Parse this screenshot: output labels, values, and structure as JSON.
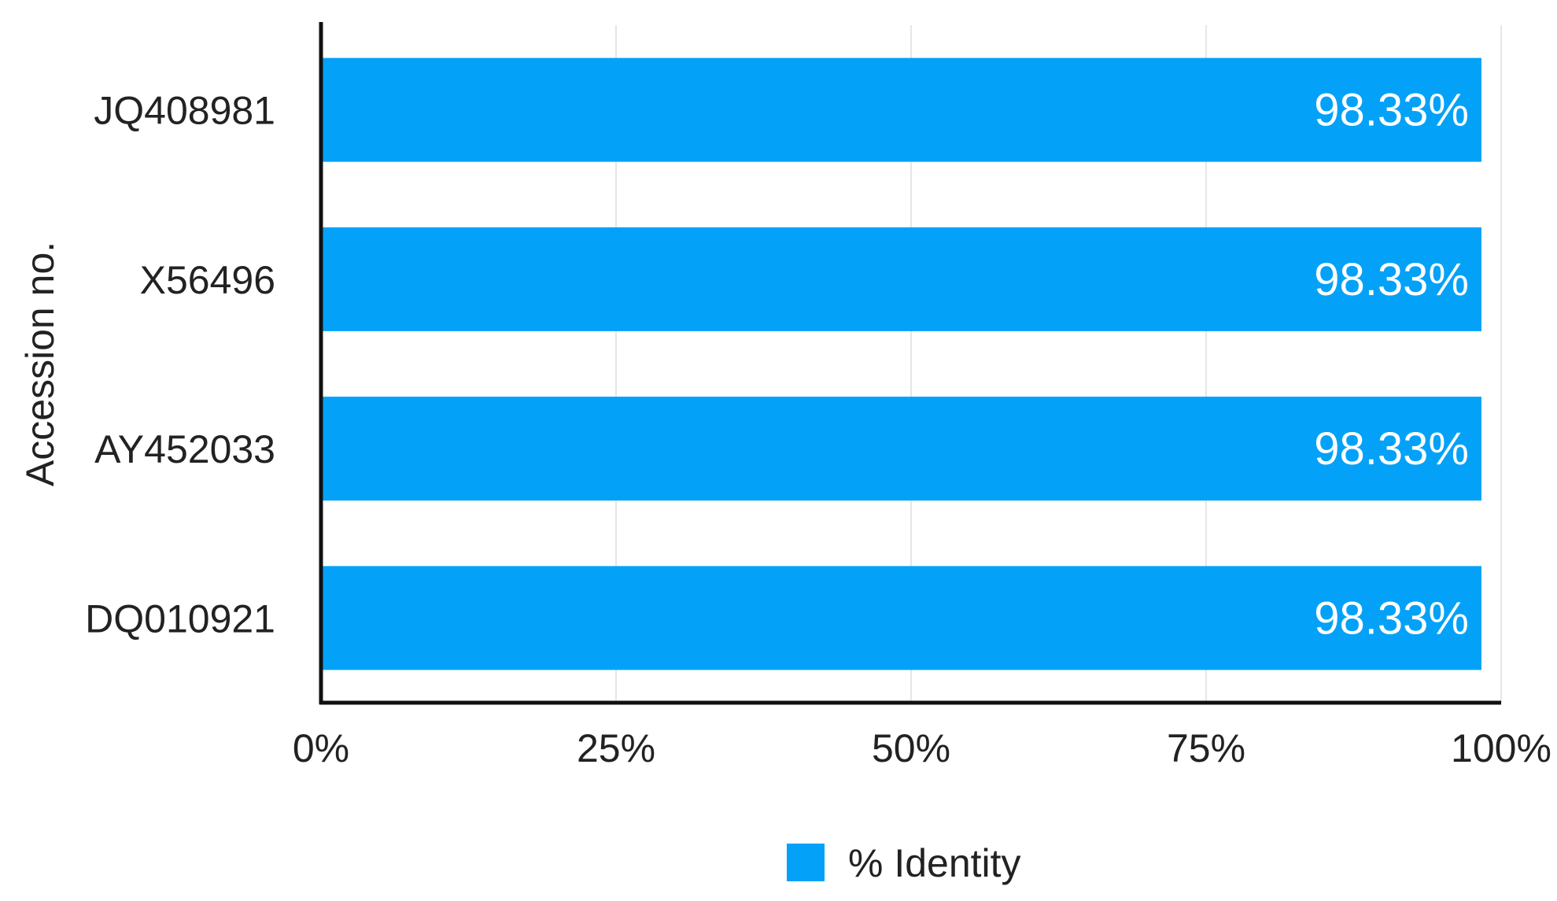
{
  "chart_data": {
    "type": "bar",
    "orientation": "horizontal",
    "categories": [
      "JQ408981",
      "X56496",
      "AY452033",
      "DQ010921"
    ],
    "series": [
      {
        "name": "% Identity",
        "values": [
          98.33,
          98.33,
          98.33,
          98.33
        ],
        "value_labels": [
          "98.33%",
          "98.33%",
          "98.33%",
          "98.33%"
        ],
        "color": "#03a2f8"
      }
    ],
    "title": "",
    "xlabel": "",
    "ylabel": "Accession no.",
    "xlim": [
      0,
      100
    ],
    "x_ticks": [
      0,
      25,
      50,
      75,
      100
    ],
    "x_tick_labels": [
      "0%",
      "25%",
      "50%",
      "75%",
      "100%"
    ],
    "grid": "vertical",
    "legend": "bottom-center"
  },
  "colors": {
    "bar": "#03a2f8",
    "axis": "#111111",
    "grid": "#e6e6e6",
    "text": "#222222",
    "value_text": "#ffffff"
  }
}
